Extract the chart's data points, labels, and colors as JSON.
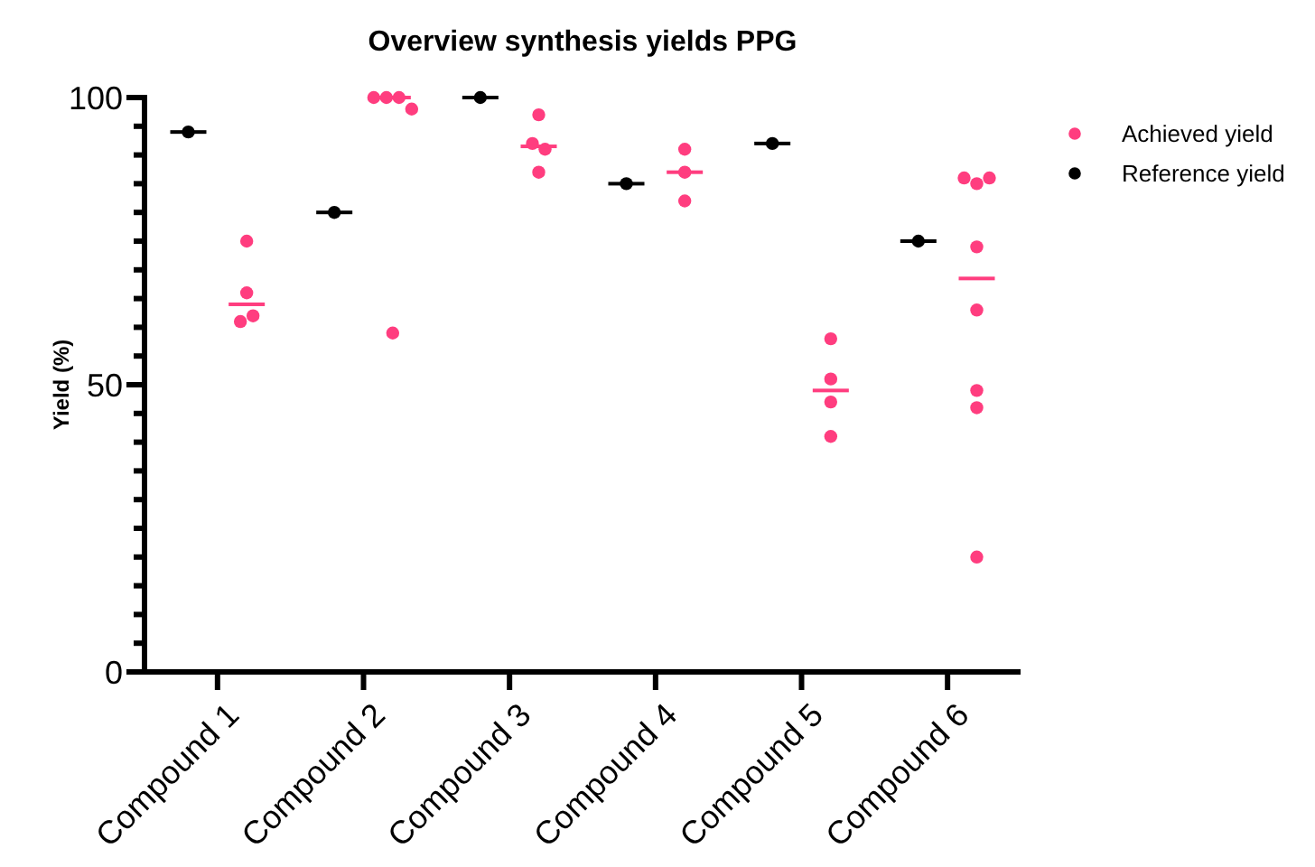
{
  "chart_data": {
    "type": "scatter",
    "title": "Overview synthesis yields PPG",
    "ylabel": "Yield (%)",
    "categories": [
      "Compound 1",
      "Compound 2",
      "Compound 3",
      "Compound 4",
      "Compound 5",
      "Compound 6"
    ],
    "ylim": [
      0,
      100
    ],
    "yticks": [
      0,
      {
        "value": 5,
        "label": null
      },
      {
        "value": 10,
        "label": null
      },
      {
        "value": 15,
        "label": null
      },
      {
        "value": 20,
        "label": null
      },
      {
        "value": 25,
        "label": null
      },
      {
        "value": 30,
        "label": null
      },
      {
        "value": 35,
        "label": null
      },
      {
        "value": 40,
        "label": null
      },
      {
        "value": 45,
        "label": null
      },
      50,
      {
        "value": 55,
        "label": null
      },
      {
        "value": 60,
        "label": null
      },
      {
        "value": 65,
        "label": null
      },
      {
        "value": 70,
        "label": null
      },
      {
        "value": 75,
        "label": null
      },
      {
        "value": 80,
        "label": null
      },
      {
        "value": 85,
        "label": null
      },
      {
        "value": 90,
        "label": null
      },
      {
        "value": 95,
        "label": null
      },
      100
    ],
    "legend": "top right",
    "marker": "circle",
    "grid": false,
    "series": [
      {
        "name": "Achieved yield",
        "color": "#ff3d7f",
        "x": [
          "Compound 1",
          "Compound 1",
          "Compound 1",
          "Compound 1",
          "Compound 2",
          "Compound 2",
          "Compound 2",
          "Compound 2",
          "Compound 2",
          "Compound 3",
          "Compound 3",
          "Compound 3",
          "Compound 3",
          "Compound 4",
          "Compound 4",
          "Compound 4",
          "Compound 5",
          "Compound 5",
          "Compound 5",
          "Compound 5",
          "Compound 6",
          "Compound 6",
          "Compound 6",
          "Compound 6",
          "Compound 6",
          "Compound 6",
          "Compound 6",
          "Compound 6"
        ],
        "values": [
          75,
          66,
          61,
          62,
          100,
          100,
          100,
          98,
          59,
          97,
          92,
          91,
          87,
          91,
          87,
          82,
          58,
          51,
          47,
          41,
          86,
          85,
          86,
          74,
          63,
          49,
          46,
          20
        ]
      },
      {
        "name": "Reference yield",
        "color": "#000000",
        "x": [
          "Compound 1",
          "Compound 2",
          "Compound 3",
          "Compound 4",
          "Compound 5",
          "Compound 6"
        ],
        "values": [
          94,
          80,
          100,
          85,
          92,
          75
        ]
      },
      {
        "type": "box",
        "color": "#ff3d7f",
        "boxes": [
          {
            "low": 64,
            "q1": 64,
            "median": 64,
            "q3": 64,
            "high": 64
          },
          {
            "low": 100,
            "q1": 100,
            "median": 100,
            "q3": 100,
            "high": 100
          },
          {
            "low": 91.5,
            "q1": 91.5,
            "median": 91.5,
            "q3": 91.5,
            "high": 91.5
          },
          {
            "low": 87,
            "q1": 87,
            "median": 87,
            "q3": 87,
            "high": 87
          },
          {
            "low": 49,
            "q1": 49,
            "median": 49,
            "q3": 49,
            "high": 49
          },
          {
            "low": 68.5,
            "q1": 68.5,
            "median": 68.5,
            "q3": 68.5,
            "high": 68.5
          }
        ]
      },
      {
        "type": "box",
        "color": "#000000",
        "boxes": [
          {
            "low": 94,
            "q1": 94,
            "median": 94,
            "q3": 94,
            "high": 94
          },
          {
            "low": 80,
            "q1": 80,
            "median": 80,
            "q3": 80,
            "high": 80
          },
          {
            "low": 100,
            "q1": 100,
            "median": 100,
            "q3": 100,
            "high": 100
          },
          {
            "low": 85,
            "q1": 85,
            "median": 85,
            "q3": 85,
            "high": 85
          },
          {
            "low": 92,
            "q1": 92,
            "median": 92,
            "q3": 92,
            "high": 92
          },
          {
            "low": 75,
            "q1": 75,
            "median": 75,
            "q3": 75,
            "high": 75
          }
        ]
      }
    ]
  }
}
